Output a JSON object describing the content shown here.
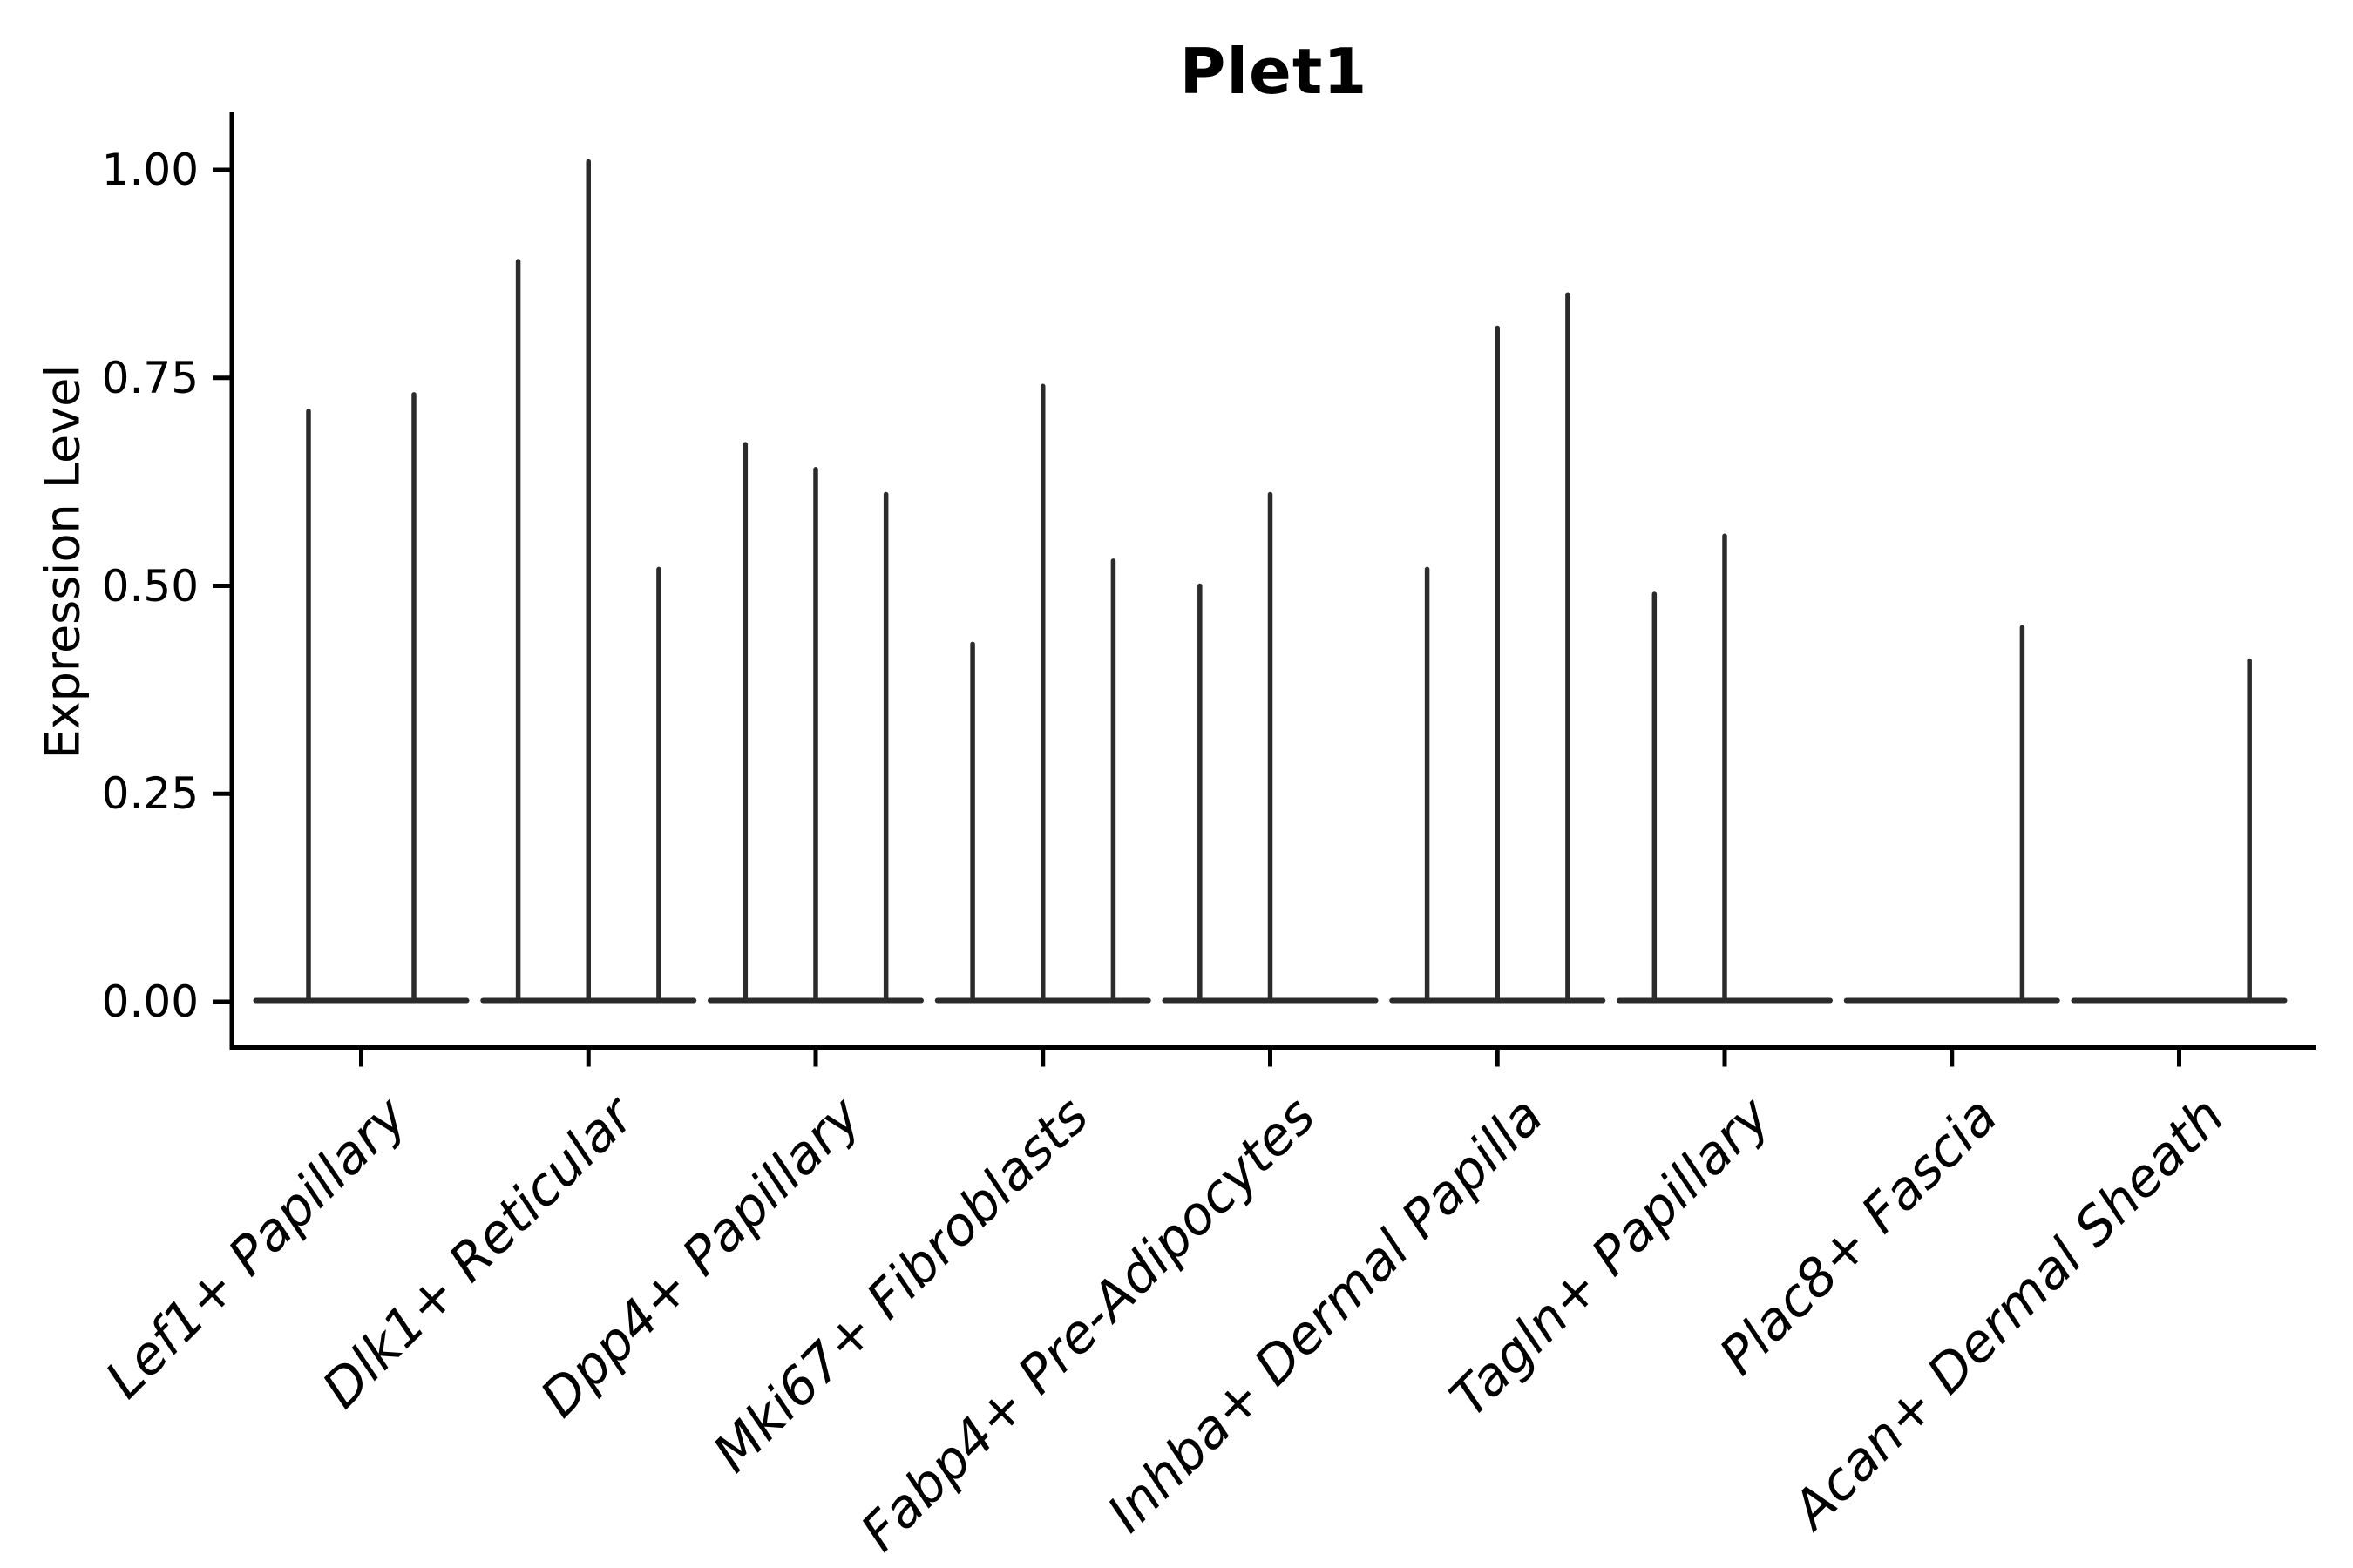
{
  "title": "Plet1",
  "y_axis": {
    "label": "Expression Level",
    "ticks": [
      "0.00",
      "0.25",
      "0.50",
      "0.75",
      "1.00"
    ]
  },
  "x_axis": {
    "categories": [
      "Lef1+ Papillary",
      "Dlk1+ Reticular",
      "Dpp4+ Papillary",
      "Mki67+ Fibroblasts",
      "Fabp4+ Pre-Adipocytes",
      "Inhba+ Dermal Papilla",
      "Tagln+ Papillary",
      "Plac8+ Fascia",
      "Acan+ Dermal Sheath"
    ]
  },
  "chart_data": {
    "type": "violin",
    "title": "Plet1",
    "xlabel": "",
    "ylabel": "Expression Level",
    "ylim": [
      0,
      1.07
    ],
    "y_tick_values": [
      0,
      0.25,
      0.5,
      0.75,
      1.0
    ],
    "grid": false,
    "legend": "none",
    "description": "Collapsed violin plot: expression is ~0 for nearly all cells, leaving flat baselines at 0 with thin spikes up to the maximum expression value of each sub-violin; a value of 0 means that sub-violin is completely flat.",
    "categories": [
      "Lef1+ Papillary",
      "Dlk1+ Reticular",
      "Dpp4+ Papillary",
      "Mki67+ Fibroblasts",
      "Fabp4+ Pre-Adipocytes",
      "Inhba+ Dermal Papilla",
      "Tagln+ Papillary",
      "Plac8+ Fascia",
      "Acan+ Dermal Sheath"
    ],
    "violins": [
      {
        "category": "Lef1+ Papillary",
        "group_maxima": [
          0.71,
          0.73
        ]
      },
      {
        "category": "Dlk1+ Reticular",
        "group_maxima": [
          0.89,
          1.01,
          0.52
        ]
      },
      {
        "category": "Dpp4+ Papillary",
        "group_maxima": [
          0.67,
          0.64,
          0.61
        ]
      },
      {
        "category": "Mki67+ Fibroblasts",
        "group_maxima": [
          0.43,
          0.74,
          0.53
        ]
      },
      {
        "category": "Fabp4+ Pre-Adipocytes",
        "group_maxima": [
          0.5,
          0.61,
          0
        ]
      },
      {
        "category": "Inhba+ Dermal Papilla",
        "group_maxima": [
          0.52,
          0.81,
          0.85
        ]
      },
      {
        "category": "Tagln+ Papillary",
        "group_maxima": [
          0.49,
          0.56,
          0
        ]
      },
      {
        "category": "Plac8+ Fascia",
        "group_maxima": [
          0,
          0,
          0.45
        ]
      },
      {
        "category": "Acan+ Dermal Sheath",
        "group_maxima": [
          0,
          0,
          0.41
        ]
      }
    ],
    "colors": {
      "violin": "#2b2b2b",
      "axis": "#000000",
      "text": "#000000",
      "background": "#ffffff"
    }
  }
}
